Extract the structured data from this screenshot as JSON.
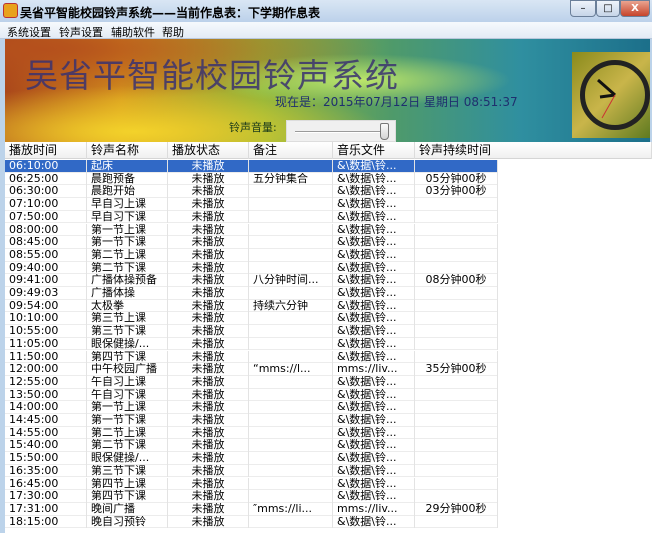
{
  "window": {
    "title": "吴省平智能校园铃声系统——当前作息表：下学期作息表",
    "min": "–",
    "max": "□",
    "close": "X"
  },
  "menu": [
    "系统设置",
    "铃声设置",
    "辅助软件",
    "帮助"
  ],
  "banner": {
    "title": "吴省平智能校园铃声系统",
    "datetime": "现在是：2015年07月12日  星期日  08:51:37",
    "volume_label": "铃声音量:",
    "volume_level_percent": 95
  },
  "colors": {
    "selection": "#3169c6",
    "banner_title": "#3b3370"
  },
  "table": {
    "columns": [
      "播放时间",
      "铃声名称",
      "播放状态",
      "备注",
      "音乐文件",
      "铃声持续时间"
    ],
    "selected_row": 0,
    "rows": [
      [
        "06:10:00",
        "起床",
        "未播放",
        "",
        "&\\数据\\铃...",
        ""
      ],
      [
        "06:25:00",
        "晨跑预备",
        "未播放",
        "五分钟集合",
        "&\\数据\\铃...",
        "05分钟00秒"
      ],
      [
        "06:30:00",
        "晨跑开始",
        "未播放",
        "",
        "&\\数据\\铃...",
        "03分钟00秒"
      ],
      [
        "07:10:00",
        "早自习上课",
        "未播放",
        "",
        "&\\数据\\铃...",
        ""
      ],
      [
        "07:50:00",
        "早自习下课",
        "未播放",
        "",
        "&\\数据\\铃...",
        ""
      ],
      [
        "08:00:00",
        "第一节上课",
        "未播放",
        "",
        "&\\数据\\铃...",
        ""
      ],
      [
        "08:45:00",
        "第一节下课",
        "未播放",
        "",
        "&\\数据\\铃...",
        ""
      ],
      [
        "08:55:00",
        "第二节上课",
        "未播放",
        "",
        "&\\数据\\铃...",
        ""
      ],
      [
        "09:40:00",
        "第二节下课",
        "未播放",
        "",
        "&\\数据\\铃...",
        ""
      ],
      [
        "09:41:00",
        "广播体操预备",
        "未播放",
        "八分钟时间...",
        "&\\数据\\铃...",
        "08分钟00秒"
      ],
      [
        "09:49:03",
        "广播体操",
        "未播放",
        "",
        "&\\数据\\铃...",
        ""
      ],
      [
        "09:54:00",
        "太极拳",
        "未播放",
        "持续六分钟",
        "&\\数据\\铃...",
        ""
      ],
      [
        "10:10:00",
        "第三节上课",
        "未播放",
        "",
        "&\\数据\\铃...",
        ""
      ],
      [
        "10:55:00",
        "第三节下课",
        "未播放",
        "",
        "&\\数据\\铃...",
        ""
      ],
      [
        "11:05:00",
        "眼保健操/...",
        "未播放",
        "",
        "&\\数据\\铃...",
        ""
      ],
      [
        "11:50:00",
        "第四节下课",
        "未播放",
        "",
        "&\\数据\\铃...",
        ""
      ],
      [
        "12:00:00",
        "中午校园广播",
        "未播放",
        "“mms://l...",
        "mms://liv...",
        "35分钟00秒"
      ],
      [
        "12:55:00",
        "午自习上课",
        "未播放",
        "",
        "&\\数据\\铃...",
        ""
      ],
      [
        "13:50:00",
        "午自习下课",
        "未播放",
        "",
        "&\\数据\\铃...",
        ""
      ],
      [
        "14:00:00",
        "第一节上课",
        "未播放",
        "",
        "&\\数据\\铃...",
        ""
      ],
      [
        "14:45:00",
        "第一节下课",
        "未播放",
        "",
        "&\\数据\\铃...",
        ""
      ],
      [
        "14:55:00",
        "第二节上课",
        "未播放",
        "",
        "&\\数据\\铃...",
        ""
      ],
      [
        "15:40:00",
        "第二节下课",
        "未播放",
        "",
        "&\\数据\\铃...",
        ""
      ],
      [
        "15:50:00",
        "眼保健操/...",
        "未播放",
        "",
        "&\\数据\\铃...",
        ""
      ],
      [
        "16:35:00",
        "第三节下课",
        "未播放",
        "",
        "&\\数据\\铃...",
        ""
      ],
      [
        "16:45:00",
        "第四节上课",
        "未播放",
        "",
        "&\\数据\\铃...",
        ""
      ],
      [
        "17:30:00",
        "第四节下课",
        "未播放",
        "",
        "&\\数据\\铃...",
        ""
      ],
      [
        "17:31:00",
        "晚间广播",
        "未播放",
        "″mms://li...",
        "mms://liv...",
        "29分钟00秒"
      ],
      [
        "18:15:00",
        "晚自习预铃",
        "未播放",
        "",
        "&\\数据\\铃...",
        ""
      ]
    ]
  }
}
